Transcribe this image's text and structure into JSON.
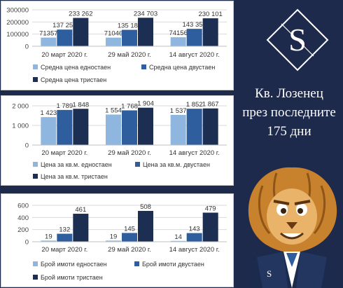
{
  "colors": {
    "single": "#8fb6de",
    "double": "#2f5e9e",
    "triple": "#1c2f52",
    "background": "#1e2a4c",
    "text": "#333333"
  },
  "brand": {
    "logo_letter": "S",
    "badge_letter": "S"
  },
  "title": {
    "line1": "Кв. Лозенец",
    "line2": "през последните",
    "line3": "175 дни"
  },
  "chart_data": [
    {
      "type": "bar",
      "categories": [
        "20 март 2020 г.",
        "29 май 2020 г.",
        "14 август 2020 г."
      ],
      "ylim": [
        0,
        300000
      ],
      "yticks": [
        "0",
        "100000",
        "200000",
        "300000"
      ],
      "tick_values": [
        0,
        100000,
        200000,
        300000
      ],
      "series": [
        {
          "name": "Средна цена едностаен",
          "values": [
            71357,
            71046,
            74156
          ],
          "labels": [
            "71357",
            "71046",
            "74156"
          ]
        },
        {
          "name": "Средна цена двустаен",
          "values": [
            137252,
            135189,
            143350
          ],
          "labels": [
            "137 252",
            "135 189",
            "143 350"
          ]
        },
        {
          "name": "Средна цена тристаен",
          "values": [
            233262,
            234703,
            230101
          ],
          "labels": [
            "233 262",
            "234 703",
            "230 101"
          ]
        }
      ],
      "legend_position": "bottom"
    },
    {
      "type": "bar",
      "categories": [
        "20 март 2020 г.",
        "29 май 2020 г.",
        "14 август 2020 г."
      ],
      "ylim": [
        0,
        2000
      ],
      "yticks": [
        "0",
        "1 000",
        "2 000"
      ],
      "tick_values": [
        0,
        1000,
        2000
      ],
      "series": [
        {
          "name": "Цена за кв.м. едностаен",
          "values": [
            1423,
            1554,
            1537
          ],
          "labels": [
            "1 423",
            "1 554",
            "1 537"
          ]
        },
        {
          "name": "Цена за кв.м. двустаен",
          "values": [
            1789,
            1768,
            1852
          ],
          "labels": [
            "1 789",
            "1 768",
            "1 852"
          ]
        },
        {
          "name": "Цена за кв.м. тристаен",
          "values": [
            1848,
            1904,
            1867
          ],
          "labels": [
            "1 848",
            "1 904",
            "1 867"
          ]
        }
      ],
      "legend_position": "bottom"
    },
    {
      "type": "bar",
      "categories": [
        "20 март 2020 г.",
        "29 май 2020 г.",
        "14 август 2020 г."
      ],
      "ylim": [
        0,
        600
      ],
      "yticks": [
        "0",
        "200",
        "400",
        "600"
      ],
      "tick_values": [
        0,
        200,
        400,
        600
      ],
      "series": [
        {
          "name": "Брой имоти едностаен",
          "values": [
            19,
            19,
            14
          ],
          "labels": [
            "19",
            "19",
            "14"
          ]
        },
        {
          "name": "Брой имоти двустаен",
          "values": [
            132,
            145,
            143
          ],
          "labels": [
            "132",
            "145",
            "143"
          ]
        },
        {
          "name": "Брой имоти тристаен",
          "values": [
            461,
            508,
            479
          ],
          "labels": [
            "461",
            "508",
            "479"
          ]
        }
      ],
      "legend_position": "bottom"
    }
  ]
}
